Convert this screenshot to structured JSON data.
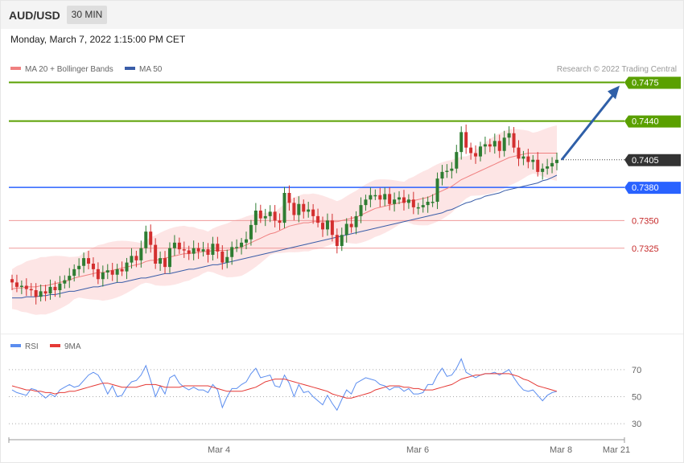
{
  "header": {
    "symbol": "AUD/USD",
    "timeframe": "30 MIN",
    "datetime": "Monday, March 7, 2022 1:15:00 PM CET"
  },
  "legend": {
    "ma20_label": "MA 20 + Bollinger Bands",
    "ma50_label": "MA 50",
    "rsi_label": "RSI",
    "rsi_ma_label": "9MA"
  },
  "credit": "Research © 2022 Trading Central",
  "colors": {
    "up": "#2e7d32",
    "down": "#d32f2f",
    "band": "#fde0e0",
    "ma20": "#f08080",
    "ma50": "#3a5da8",
    "resistance": "#5aa000",
    "pivot": "#2962ff",
    "support": "#ef9a9a",
    "current": "#333333",
    "rsi": "#5b8def",
    "rsi_ma": "#e53935"
  },
  "chart_data": {
    "type": "candlestick",
    "y_range": [
      0.7255,
      0.7495
    ],
    "levels": [
      {
        "value": 0.7475,
        "label": "0.7475",
        "kind": "resistance"
      },
      {
        "value": 0.744,
        "label": "0.7440",
        "kind": "resistance"
      },
      {
        "value": 0.7405,
        "label": "0.7405",
        "kind": "current"
      },
      {
        "value": 0.738,
        "label": "0.7380",
        "kind": "pivot"
      },
      {
        "value": 0.735,
        "label": "0.7350",
        "kind": "support"
      },
      {
        "value": 0.7325,
        "label": "0.7325",
        "kind": "support"
      }
    ],
    "x_ticks": [
      "Mar 4",
      "Mar 6",
      "Mar 8",
      "Mar 21"
    ],
    "closes": [
      0.7294,
      0.729,
      0.7291,
      0.7288,
      0.7287,
      0.7281,
      0.7286,
      0.7284,
      0.729,
      0.7287,
      0.7293,
      0.7296,
      0.73,
      0.7306,
      0.7309,
      0.7316,
      0.7311,
      0.7306,
      0.7297,
      0.7303,
      0.7305,
      0.7301,
      0.7306,
      0.7304,
      0.7312,
      0.7318,
      0.7314,
      0.7325,
      0.734,
      0.7328,
      0.7311,
      0.7316,
      0.7308,
      0.7325,
      0.733,
      0.7324,
      0.7323,
      0.732,
      0.7325,
      0.7322,
      0.7324,
      0.7319,
      0.7329,
      0.7322,
      0.7312,
      0.7317,
      0.7326,
      0.7326,
      0.733,
      0.7333,
      0.7346,
      0.7359,
      0.7352,
      0.7354,
      0.7358,
      0.735,
      0.7348,
      0.7375,
      0.7366,
      0.7355,
      0.7365,
      0.7358,
      0.736,
      0.7354,
      0.7348,
      0.7342,
      0.735,
      0.7337,
      0.7327,
      0.7337,
      0.7347,
      0.7344,
      0.7354,
      0.7364,
      0.7369,
      0.7373,
      0.7373,
      0.7369,
      0.7374,
      0.7365,
      0.7369,
      0.7371,
      0.7366,
      0.7369,
      0.7362,
      0.7362,
      0.7364,
      0.7367,
      0.7367,
      0.7388,
      0.7394,
      0.7395,
      0.7397,
      0.7412,
      0.743,
      0.7416,
      0.7411,
      0.7408,
      0.7417,
      0.7419,
      0.7417,
      0.7422,
      0.7413,
      0.7425,
      0.7429,
      0.7416,
      0.7406,
      0.7408,
      0.7403,
      0.7405,
      0.7394,
      0.7397,
      0.7399,
      0.7402,
      0.7405
    ],
    "opens": [
      0.7297,
      0.7294,
      0.729,
      0.7291,
      0.7288,
      0.7287,
      0.7281,
      0.7286,
      0.7284,
      0.729,
      0.7287,
      0.7293,
      0.7296,
      0.73,
      0.7306,
      0.7309,
      0.7316,
      0.7311,
      0.7306,
      0.7297,
      0.7303,
      0.7305,
      0.7301,
      0.7306,
      0.7304,
      0.7312,
      0.7318,
      0.7314,
      0.7325,
      0.734,
      0.7328,
      0.7311,
      0.7316,
      0.7308,
      0.7325,
      0.733,
      0.7324,
      0.7323,
      0.732,
      0.7325,
      0.7322,
      0.7324,
      0.7319,
      0.7329,
      0.7322,
      0.7312,
      0.7317,
      0.7326,
      0.7326,
      0.733,
      0.7333,
      0.7346,
      0.7359,
      0.7352,
      0.7354,
      0.7358,
      0.735,
      0.7348,
      0.7375,
      0.7366,
      0.7355,
      0.7365,
      0.7358,
      0.736,
      0.7354,
      0.7348,
      0.7342,
      0.735,
      0.7337,
      0.7327,
      0.7337,
      0.7347,
      0.7344,
      0.7354,
      0.7364,
      0.7369,
      0.7373,
      0.7373,
      0.7369,
      0.7374,
      0.7365,
      0.7369,
      0.7371,
      0.7366,
      0.7369,
      0.7362,
      0.7362,
      0.7364,
      0.7367,
      0.7367,
      0.7388,
      0.7394,
      0.7395,
      0.7397,
      0.7412,
      0.743,
      0.7416,
      0.7411,
      0.7408,
      0.7417,
      0.7419,
      0.7417,
      0.7422,
      0.7413,
      0.7425,
      0.7429,
      0.7416,
      0.7406,
      0.7408,
      0.7403,
      0.7405,
      0.7394,
      0.7397,
      0.7399,
      0.7402
    ],
    "ma20": [
      0.7288,
      0.7289,
      0.7289,
      0.729,
      0.729,
      0.729,
      0.7291,
      0.7291,
      0.7292,
      0.7293,
      0.7294,
      0.7295,
      0.7296,
      0.7298,
      0.7299,
      0.73,
      0.7301,
      0.7302,
      0.7303,
      0.7303,
      0.7304,
      0.7305,
      0.7306,
      0.7307,
      0.7308,
      0.7309,
      0.731,
      0.7311,
      0.7313,
      0.7314,
      0.7314,
      0.7315,
      0.7316,
      0.7317,
      0.7318,
      0.7319,
      0.732,
      0.732,
      0.7321,
      0.7321,
      0.7322,
      0.7322,
      0.7323,
      0.7323,
      0.7323,
      0.7323,
      0.7324,
      0.7325,
      0.7326,
      0.7328,
      0.733,
      0.7332,
      0.7334,
      0.7336,
      0.7338,
      0.7339,
      0.7341,
      0.7343,
      0.7345,
      0.7346,
      0.7347,
      0.7348,
      0.7348,
      0.7349,
      0.7349,
      0.7349,
      0.7349,
      0.7349,
      0.7349,
      0.735,
      0.7351,
      0.7352,
      0.7353,
      0.7355,
      0.7357,
      0.7359,
      0.7361,
      0.7362,
      0.7363,
      0.7364,
      0.7365,
      0.7366,
      0.7367,
      0.7368,
      0.7368,
      0.7369,
      0.737,
      0.7371,
      0.7373,
      0.7375,
      0.7377,
      0.7379,
      0.7381,
      0.7384,
      0.7387,
      0.7389,
      0.7391,
      0.7393,
      0.7395,
      0.7397,
      0.7399,
      0.7401,
      0.7403,
      0.7405,
      0.7407,
      0.7408,
      0.7409,
      0.741,
      0.7411,
      0.7411,
      0.7411,
      0.7411,
      0.7411,
      0.7411,
      0.7411
    ],
    "ma50": [
      0.728,
      0.728,
      0.728,
      0.7281,
      0.7281,
      0.7281,
      0.7282,
      0.7282,
      0.7283,
      0.7283,
      0.7284,
      0.7285,
      0.7286,
      0.7286,
      0.7287,
      0.7288,
      0.7289,
      0.729,
      0.729,
      0.7291,
      0.7292,
      0.7293,
      0.7294,
      0.7294,
      0.7295,
      0.7296,
      0.7297,
      0.7298,
      0.7298,
      0.7299,
      0.73,
      0.7301,
      0.7302,
      0.7302,
      0.7303,
      0.7304,
      0.7305,
      0.7306,
      0.7306,
      0.7307,
      0.7308,
      0.7309,
      0.731,
      0.731,
      0.7311,
      0.7312,
      0.7313,
      0.7314,
      0.7315,
      0.7316,
      0.7317,
      0.7318,
      0.7319,
      0.732,
      0.7321,
      0.7322,
      0.7323,
      0.7324,
      0.7325,
      0.7326,
      0.7327,
      0.7328,
      0.7329,
      0.733,
      0.7331,
      0.7332,
      0.7333,
      0.7334,
      0.7335,
      0.7336,
      0.7337,
      0.7338,
      0.7339,
      0.734,
      0.7341,
      0.7342,
      0.7343,
      0.7344,
      0.7345,
      0.7346,
      0.7347,
      0.7348,
      0.7349,
      0.735,
      0.7351,
      0.7352,
      0.7353,
      0.7354,
      0.7355,
      0.7356,
      0.7357,
      0.7359,
      0.736,
      0.7362,
      0.7364,
      0.7366,
      0.7367,
      0.7369,
      0.737,
      0.7372,
      0.7373,
      0.7374,
      0.7375,
      0.7377,
      0.7378,
      0.7379,
      0.738,
      0.7381,
      0.7382,
      0.7383,
      0.7384,
      0.7386,
      0.7387,
      0.7389,
      0.7391
    ],
    "rsi": {
      "y_range": [
        20,
        80
      ],
      "levels": [
        70,
        50,
        30
      ],
      "rsi": [
        55,
        53,
        52,
        51,
        56,
        55,
        52,
        49,
        52,
        50,
        55,
        57,
        59,
        57,
        58,
        62,
        66,
        68,
        66,
        60,
        52,
        58,
        50,
        51,
        57,
        61,
        62,
        66,
        73,
        62,
        50,
        58,
        52,
        64,
        66,
        60,
        57,
        55,
        57,
        55,
        55,
        53,
        59,
        55,
        42,
        50,
        56,
        56,
        59,
        61,
        67,
        71,
        64,
        65,
        66,
        58,
        57,
        66,
        60,
        50,
        59,
        53,
        54,
        50,
        47,
        44,
        51,
        45,
        40,
        48,
        55,
        52,
        60,
        62,
        64,
        63,
        62,
        59,
        58,
        55,
        57,
        57,
        54,
        56,
        52,
        52,
        53,
        59,
        59,
        66,
        71,
        65,
        66,
        71,
        78,
        68,
        66,
        64,
        66,
        67,
        67,
        68,
        66,
        68,
        70,
        64,
        59,
        55,
        54,
        55,
        51,
        47,
        51,
        53,
        54
      ],
      "ma9": [
        58,
        57,
        56,
        55,
        55,
        54,
        54,
        53,
        53,
        52,
        53,
        53,
        54,
        54,
        55,
        56,
        57,
        58,
        59,
        60,
        60,
        59,
        58,
        57,
        57,
        57,
        57,
        58,
        59,
        59,
        59,
        58,
        57,
        57,
        57,
        57,
        58,
        58,
        58,
        58,
        58,
        58,
        57,
        56,
        55,
        54,
        54,
        54,
        54,
        55,
        56,
        57,
        59,
        61,
        62,
        63,
        63,
        63,
        62,
        61,
        60,
        59,
        58,
        57,
        56,
        55,
        54,
        52,
        51,
        50,
        49,
        49,
        50,
        51,
        52,
        53,
        55,
        56,
        57,
        58,
        58,
        58,
        57,
        57,
        56,
        56,
        55,
        55,
        55,
        56,
        57,
        58,
        59,
        61,
        63,
        64,
        65,
        66,
        66,
        67,
        67,
        67,
        67,
        67,
        67,
        66,
        65,
        63,
        62,
        60,
        58,
        57,
        56,
        55,
        54
      ]
    }
  }
}
